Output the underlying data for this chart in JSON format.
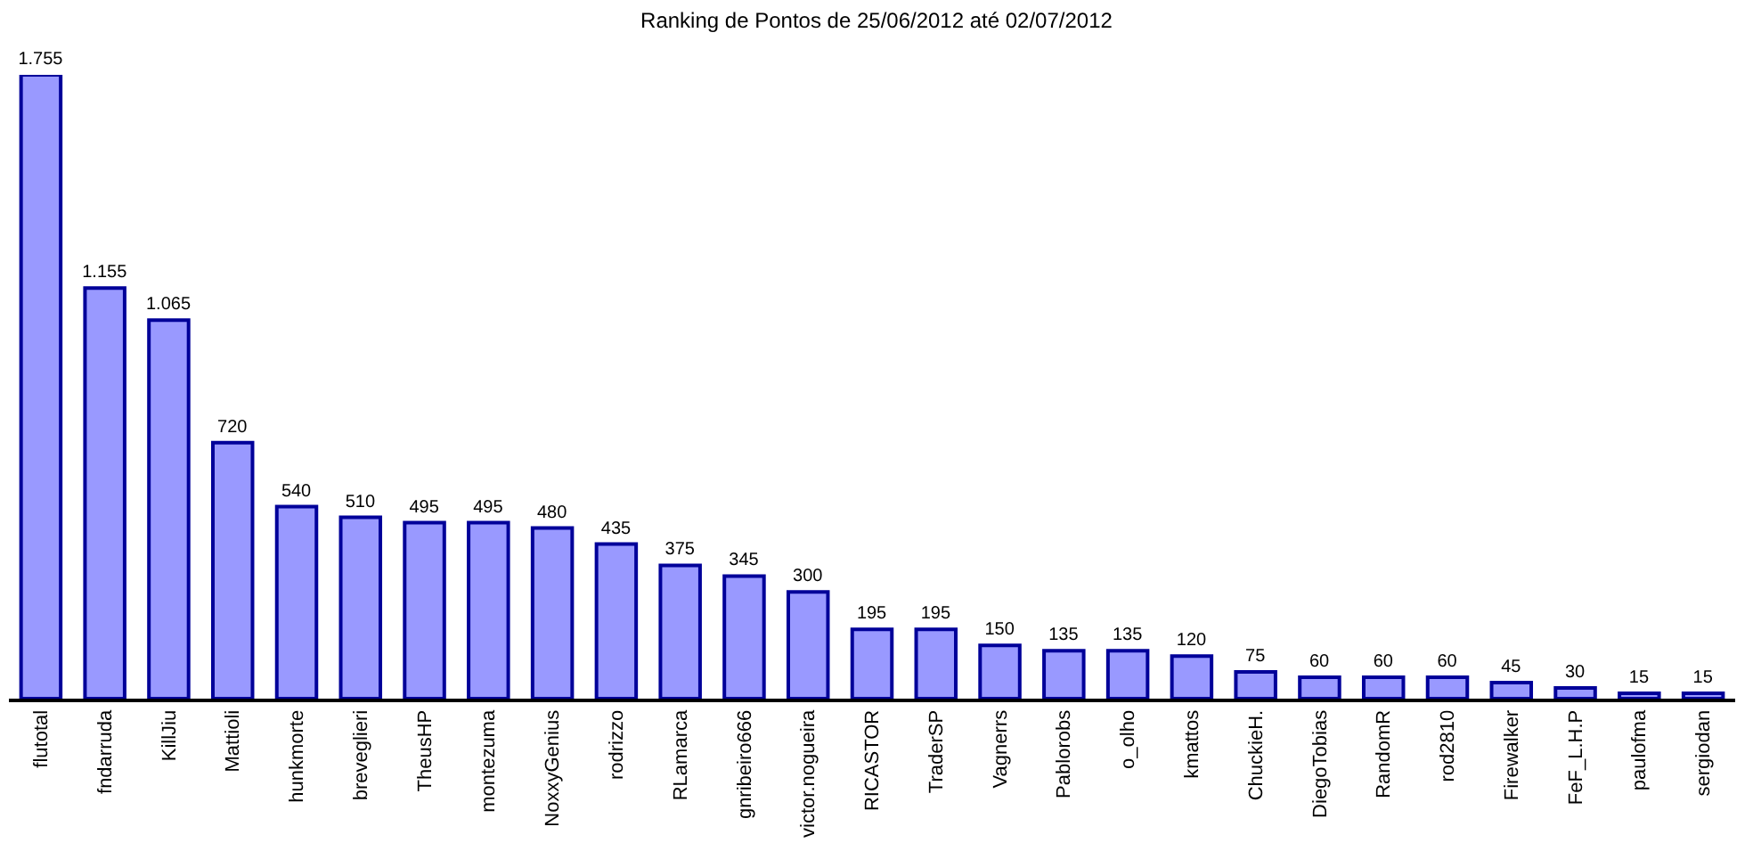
{
  "chart_data": {
    "type": "bar",
    "title": "Ranking de Pontos de 25/06/2012 até 02/07/2012",
    "categories": [
      "flutotal",
      "fndarruda",
      "KillJiu",
      "Mattioli",
      "hunkmorte",
      "breveglieri",
      "TheusHP",
      "montezuma",
      "NoxxyGenius",
      "rodrizzo",
      "RLamarca",
      "gnribeiro666",
      "victor.nogueira",
      "RICASTOR",
      "TraderSP",
      "Vagnerrs",
      "Pablorobs",
      "o_olho",
      "kmattos",
      "ChuckieH.",
      "DiegoTobias",
      "RandomR",
      "rod2810",
      "Firewalker",
      "FeF_L.H.P",
      "paulofma",
      "sergiodan"
    ],
    "values": [
      1755,
      1155,
      1065,
      720,
      540,
      510,
      495,
      495,
      480,
      435,
      375,
      345,
      300,
      195,
      195,
      150,
      135,
      135,
      120,
      75,
      60,
      60,
      60,
      45,
      30,
      15,
      15
    ],
    "value_labels": [
      "1.755",
      "1.155",
      "1.065",
      "720",
      "540",
      "510",
      "495",
      "495",
      "480",
      "435",
      "375",
      "345",
      "300",
      "195",
      "195",
      "150",
      "135",
      "135",
      "120",
      "75",
      "60",
      "60",
      "60",
      "45",
      "30",
      "15",
      "15"
    ],
    "color": "#9999ff",
    "grid": false
  }
}
